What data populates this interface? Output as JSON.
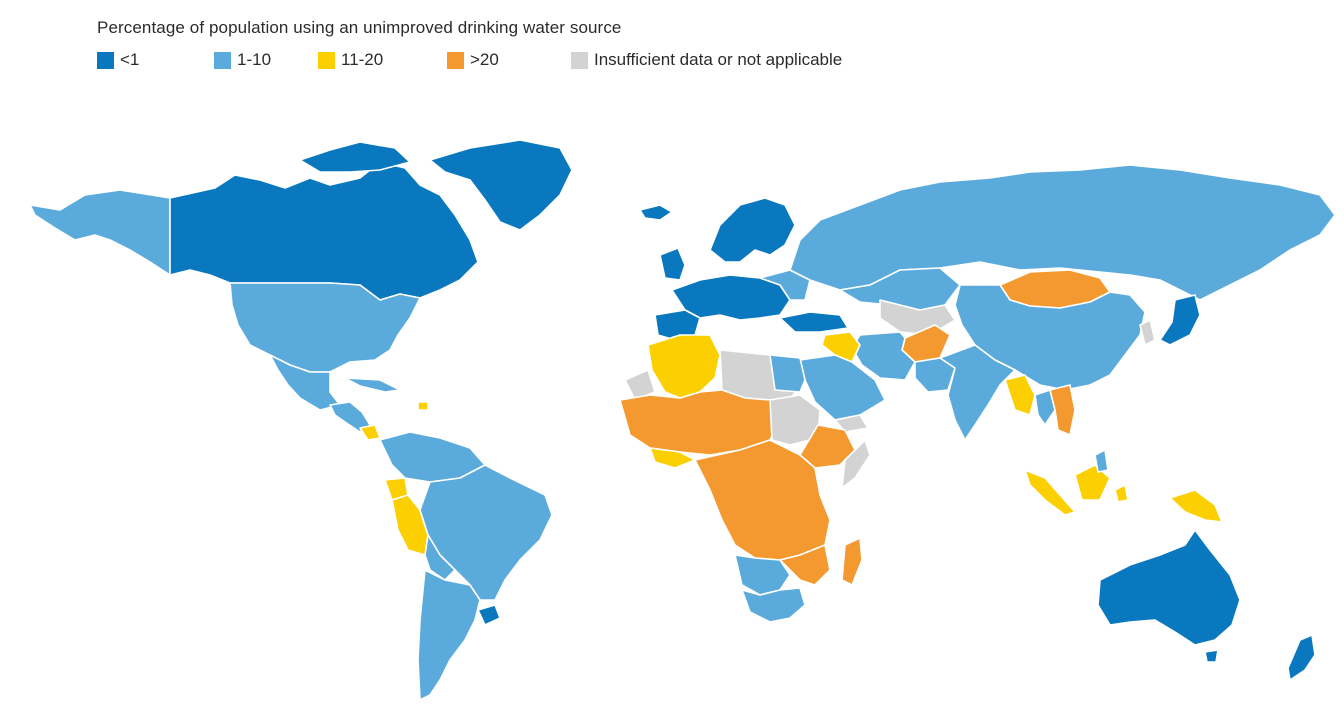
{
  "title": "Percentage of population using an unimproved drinking water source",
  "legend": [
    {
      "label": "<1",
      "color": "#0a78bf"
    },
    {
      "label": "1-10",
      "color": "#5aaadb"
    },
    {
      "label": "11-20",
      "color": "#fcd000"
    },
    {
      "label": ">20",
      "color": "#f3992f"
    },
    {
      "label": "Insufficient data or not applicable",
      "color": "#d3d3d3"
    }
  ],
  "colors": {
    "lt1": "#0a78bf",
    "r1_10": "#5aaadb",
    "r11_20": "#fcd000",
    "gt20": "#f3992f",
    "nodata": "#d3d3d3"
  }
}
